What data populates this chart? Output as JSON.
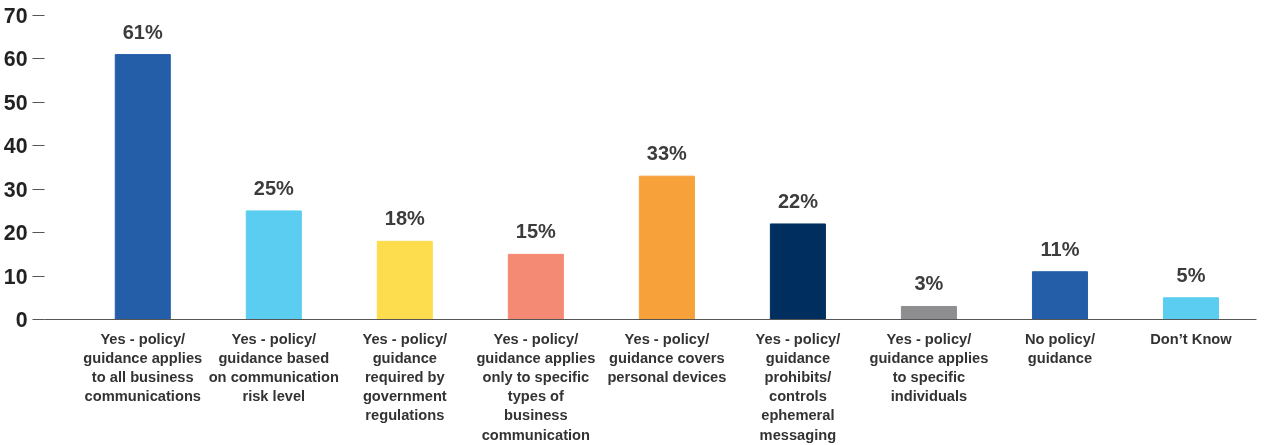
{
  "chart_data": {
    "type": "bar",
    "categories": [
      "Yes - policy/ guidance applies to all business communications",
      "Yes - policy/ guidance based on communication risk level",
      "Yes - policy/ guidance required by government regulations",
      "Yes - policy/ guidance applies only to specific types of business communication",
      "Yes - policy/ guidance covers personal devices",
      "Yes - policy/ guidance prohibits/ controls ephemeral messaging",
      "Yes - policy/ guidance applies to specific individuals",
      "No policy/ guidance",
      "Don’t Know"
    ],
    "values": [
      61,
      25,
      18,
      15,
      33,
      22,
      3,
      11,
      5
    ],
    "colors": [
      "#245ea9",
      "#5acdf0",
      "#fddc4e",
      "#f48a74",
      "#f7a13a",
      "#002f5f",
      "#8e8e90",
      "#245ea9",
      "#5acdf0"
    ],
    "value_labels": [
      "61%",
      "25%",
      "18%",
      "15%",
      "33%",
      "22%",
      "3%",
      "11%",
      "5%"
    ],
    "ylim": [
      0,
      70
    ],
    "yticks": [
      0,
      10,
      20,
      30,
      40,
      50,
      60,
      70
    ],
    "grid": false
  }
}
